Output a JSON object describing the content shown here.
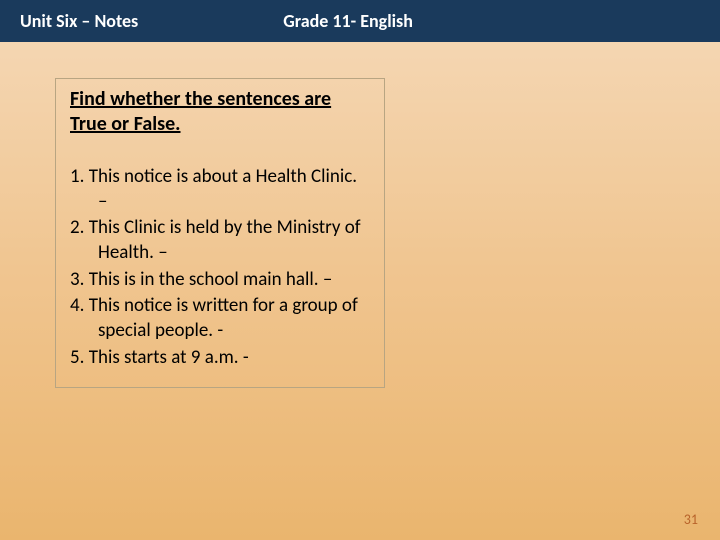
{
  "header": {
    "left": "Unit  Six – Notes",
    "right": "Grade 11- English"
  },
  "content": {
    "instruction": "Find whether the sentences are True or False.",
    "questions": [
      "1. This notice is about a Health Clinic. –",
      "2. This Clinic is held by the Ministry of Health. –",
      "3. This is in the school main hall. –",
      "4. This notice is written for a group of special people. -",
      "5. This starts at 9 a.m. -"
    ]
  },
  "page_number": "31",
  "colors": {
    "header_bg": "#1a3a5c",
    "header_text": "#ffffff",
    "body_gradient_top": "#f5d9b8",
    "body_gradient_bottom": "#eab56e",
    "box_border": "#b8a582",
    "text": "#000000",
    "page_num": "#b8632a"
  }
}
